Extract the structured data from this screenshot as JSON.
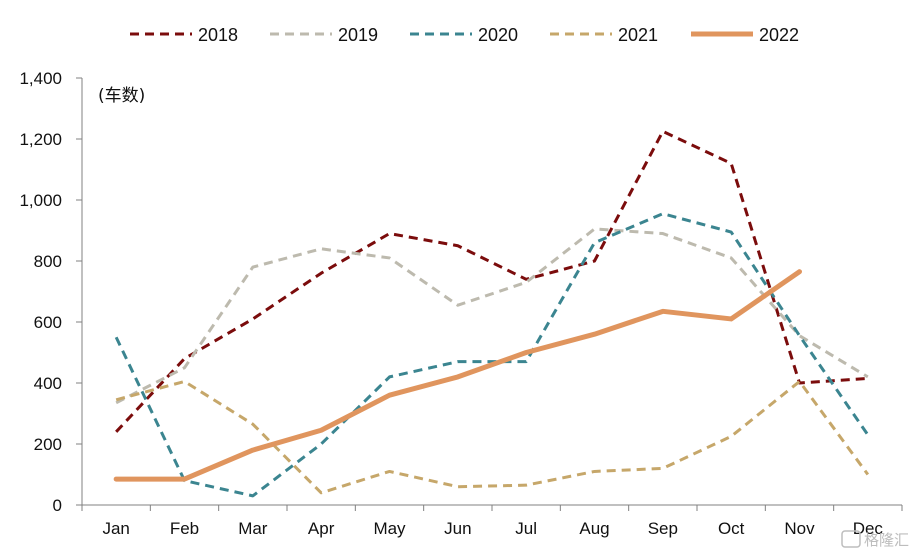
{
  "chart_data": {
    "type": "line",
    "unit_label": "(车数)",
    "categories": [
      "Jan",
      "Feb",
      "Mar",
      "Apr",
      "May",
      "Jun",
      "Jul",
      "Aug",
      "Sep",
      "Oct",
      "Nov",
      "Dec"
    ],
    "ylim": [
      0,
      1400
    ],
    "yticks": [
      "0",
      "200",
      "400",
      "600",
      "800",
      "1,000",
      "1,200",
      "1,400"
    ],
    "ytick_values": [
      0,
      200,
      400,
      600,
      800,
      1000,
      1200,
      1400
    ],
    "grid": false,
    "legend_position": "top",
    "series": [
      {
        "name": "2018",
        "color": "#7b0c0c",
        "dash": "dashed",
        "values": [
          240,
          480,
          610,
          760,
          890,
          850,
          740,
          800,
          1225,
          1120,
          400,
          415
        ]
      },
      {
        "name": "2019",
        "color": "#bdbaae",
        "dash": "dashed",
        "values": [
          335,
          450,
          780,
          840,
          810,
          655,
          730,
          905,
          890,
          810,
          555,
          420
        ]
      },
      {
        "name": "2020",
        "color": "#3b8590",
        "dash": "dashed",
        "values": [
          550,
          80,
          30,
          200,
          420,
          470,
          470,
          860,
          955,
          895,
          555,
          230
        ]
      },
      {
        "name": "2021",
        "color": "#c6a76a",
        "dash": "dashed",
        "values": [
          345,
          405,
          265,
          40,
          110,
          60,
          65,
          110,
          120,
          225,
          405,
          100
        ]
      },
      {
        "name": "2022",
        "color": "#e0955e",
        "dash": "solid",
        "values": [
          85,
          85,
          180,
          245,
          360,
          420,
          500,
          560,
          635,
          610,
          765,
          null
        ]
      }
    ]
  },
  "watermark": {
    "text": "格隆汇"
  }
}
